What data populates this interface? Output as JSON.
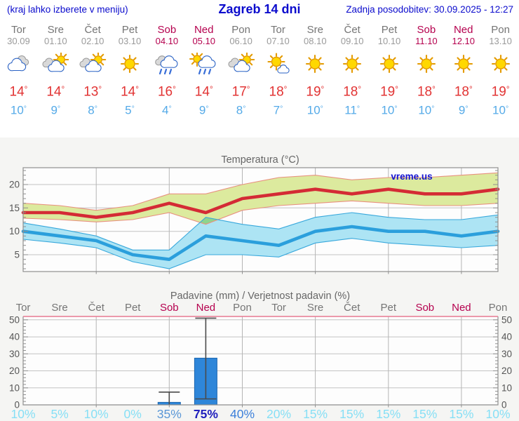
{
  "header": {
    "hint": "(kraj lahko izberete v meniju)",
    "title": "Zagreb 14 dni",
    "updated": "Zadnja posodobitev: 30.09.2025 - 12:27"
  },
  "colors": {
    "header_blue": "#0b0bcd",
    "weekend": "#b5004e",
    "day_gray": "#757575",
    "date_gray": "#9a9a9a",
    "tmax": "#e23434",
    "tmin": "#54aae8",
    "bar": "#2e86d9",
    "tmax_line": "#d42b35",
    "tmin_line": "#2b9fdc",
    "tmax_band": "#dcea9e",
    "tmin_band": "#ade4f4",
    "band_overlap": "#8ed48e",
    "pop": {
      "low": "#86dff5",
      "mid": "#5b97d6",
      "mid2": "#3d80da",
      "high": "#2121bd"
    }
  },
  "days": [
    {
      "name": "Tor",
      "date": "30.09",
      "icon": "cloudy",
      "tmax": "14",
      "tmin": "10",
      "weekend": false,
      "pop": "10%",
      "pop_level": "low"
    },
    {
      "name": "Sre",
      "date": "01.10",
      "icon": "partly-cloudy",
      "tmax": "14",
      "tmin": "9",
      "weekend": false,
      "pop": "5%",
      "pop_level": "low"
    },
    {
      "name": "Čet",
      "date": "02.10",
      "icon": "partly-cloudy",
      "tmax": "13",
      "tmin": "8",
      "weekend": false,
      "pop": "10%",
      "pop_level": "low"
    },
    {
      "name": "Pet",
      "date": "03.10",
      "icon": "sunny",
      "tmax": "14",
      "tmin": "5",
      "weekend": false,
      "pop": "0%",
      "pop_level": "low"
    },
    {
      "name": "Sob",
      "date": "04.10",
      "icon": "rain",
      "tmax": "16",
      "tmin": "4",
      "weekend": true,
      "pop": "35%",
      "pop_level": "mid"
    },
    {
      "name": "Ned",
      "date": "05.10",
      "icon": "sun-rain",
      "tmax": "14",
      "tmin": "9",
      "weekend": true,
      "pop": "75%",
      "pop_level": "high"
    },
    {
      "name": "Pon",
      "date": "06.10",
      "icon": "partly-cloudy",
      "tmax": "17",
      "tmin": "8",
      "weekend": false,
      "pop": "40%",
      "pop_level": "mid2"
    },
    {
      "name": "Tor",
      "date": "07.10",
      "icon": "mostly-sunny",
      "tmax": "18",
      "tmin": "7",
      "weekend": false,
      "pop": "20%",
      "pop_level": "low"
    },
    {
      "name": "Sre",
      "date": "08.10",
      "icon": "sunny",
      "tmax": "19",
      "tmin": "10",
      "weekend": false,
      "pop": "15%",
      "pop_level": "low"
    },
    {
      "name": "Čet",
      "date": "09.10",
      "icon": "sunny",
      "tmax": "18",
      "tmin": "11",
      "weekend": false,
      "pop": "15%",
      "pop_level": "low"
    },
    {
      "name": "Pet",
      "date": "10.10",
      "icon": "sunny",
      "tmax": "19",
      "tmin": "10",
      "weekend": false,
      "pop": "15%",
      "pop_level": "low"
    },
    {
      "name": "Sob",
      "date": "11.10",
      "icon": "sunny",
      "tmax": "18",
      "tmin": "10",
      "weekend": true,
      "pop": "15%",
      "pop_level": "low"
    },
    {
      "name": "Ned",
      "date": "12.10",
      "icon": "sunny",
      "tmax": "18",
      "tmin": "9",
      "weekend": true,
      "pop": "15%",
      "pop_level": "low"
    },
    {
      "name": "Pon",
      "date": "13.10",
      "icon": "sunny",
      "tmax": "19",
      "tmin": "10",
      "weekend": false,
      "pop": "10%",
      "pop_level": "low"
    }
  ],
  "chart_data": [
    {
      "type": "line",
      "title": "Temperatura (°C)",
      "watermark": "vreme.us",
      "x_labels": [
        "Tor",
        "Sre",
        "Čet",
        "Pet",
        "Sob",
        "Ned",
        "Pon",
        "Tor",
        "Sre",
        "Čet",
        "Pet",
        "Sob",
        "Ned",
        "Pon"
      ],
      "series": [
        {
          "name": "tmax",
          "label": "max temperatura",
          "color": "#d42b35",
          "values": [
            14,
            14,
            13,
            14,
            16,
            14,
            17,
            18,
            19,
            18,
            19,
            18,
            18,
            19
          ]
        },
        {
          "name": "tmax_hi",
          "label": "max range upper",
          "values": [
            16,
            15.5,
            14.5,
            15.5,
            18,
            18,
            20,
            21.5,
            22,
            21,
            21.5,
            21.5,
            22,
            22.5
          ]
        },
        {
          "name": "tmax_lo",
          "label": "max range lower",
          "values": [
            12.8,
            12.5,
            12,
            12.5,
            14,
            11.5,
            14.5,
            15.5,
            16,
            16.5,
            16,
            15.5,
            15.5,
            16
          ]
        },
        {
          "name": "tmin",
          "label": "min temperatura",
          "color": "#2b9fdc",
          "values": [
            10,
            9,
            8,
            5,
            4,
            9,
            8,
            7,
            10,
            11,
            10,
            10,
            9,
            10
          ]
        },
        {
          "name": "tmin_hi",
          "label": "min range upper",
          "values": [
            11.8,
            10.5,
            9,
            6,
            6,
            13,
            11.5,
            10.5,
            13,
            14,
            13,
            12.5,
            12.5,
            13.5
          ]
        },
        {
          "name": "tmin_lo",
          "label": "min range lower",
          "values": [
            8.3,
            7.5,
            6.5,
            3.5,
            2,
            5,
            5,
            4.5,
            7.5,
            8.5,
            7.5,
            7,
            6.5,
            7
          ]
        }
      ],
      "ylim": [
        1.4,
        23.6
      ],
      "yticks": [
        5,
        10,
        15,
        20
      ],
      "grid": true
    },
    {
      "type": "bar",
      "title": "Padavine (mm) / Verjetnost padavin (%)",
      "categories": [
        "Tor",
        "Sre",
        "Čet",
        "Pet",
        "Sob",
        "Ned",
        "Pon",
        "Tor",
        "Sre",
        "Čet",
        "Pet",
        "Sob",
        "Ned",
        "Pon"
      ],
      "values": [
        0,
        0,
        0,
        0,
        1.5,
        27.5,
        0,
        0,
        0,
        0,
        0,
        0,
        0,
        0
      ],
      "whiskers": [
        {
          "index": 4,
          "low": 0,
          "high": 7.5,
          "caps": [
            "high"
          ]
        },
        {
          "index": 5,
          "low": 3.5,
          "high": 51,
          "caps": [
            "high",
            "low"
          ]
        }
      ],
      "probability": [
        10,
        5,
        10,
        0,
        35,
        75,
        40,
        20,
        15,
        15,
        15,
        15,
        15,
        10
      ],
      "ylim": [
        0,
        52
      ],
      "yticks": [
        0,
        10,
        20,
        30,
        40,
        50
      ],
      "grid": true
    }
  ]
}
